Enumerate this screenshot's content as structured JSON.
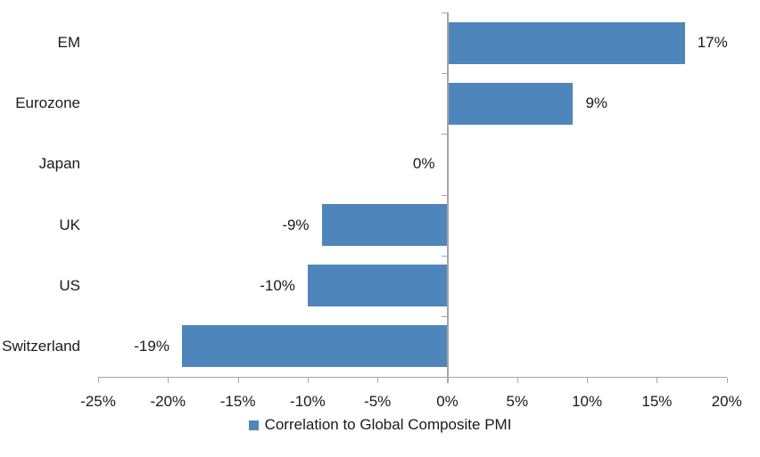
{
  "chart_data": {
    "type": "bar",
    "orientation": "horizontal",
    "title": "",
    "categories": [
      "EM",
      "Eurozone",
      "Japan",
      "UK",
      "US",
      "Switzerland"
    ],
    "values": [
      17,
      9,
      0,
      -9,
      -10,
      -19
    ],
    "value_labels": [
      "17%",
      "9%",
      "0%",
      "-9%",
      "-10%",
      "-19%"
    ],
    "x_ticks": [
      -25,
      -20,
      -15,
      -10,
      -5,
      0,
      5,
      10,
      15,
      20
    ],
    "x_tick_labels": [
      "-25%",
      "-20%",
      "-15%",
      "-10%",
      "-5%",
      "0%",
      "5%",
      "10%",
      "15%",
      "20%"
    ],
    "xlim": [
      -25,
      20
    ],
    "xlabel": "",
    "ylabel": "",
    "grid": false,
    "legend_position": "bottom",
    "colors": {
      "bar": "#4E86BB",
      "axis": "#A6A6A6",
      "text": "#1a1a1a",
      "background": "#FFFFFF"
    }
  },
  "legend": {
    "label": "Correlation to Global Composite PMI",
    "swatch_color": "#4E86BB"
  }
}
